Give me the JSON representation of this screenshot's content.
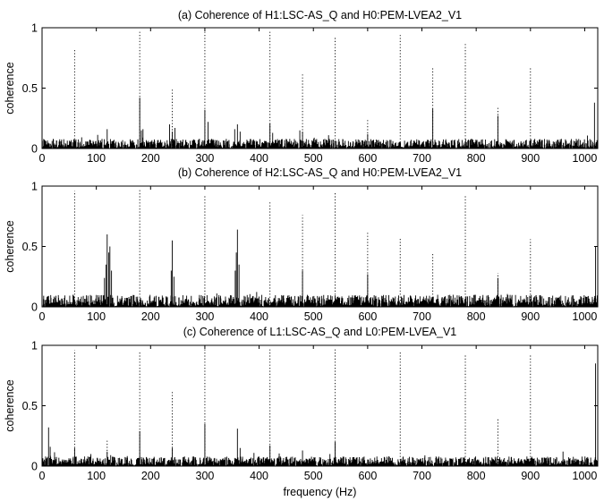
{
  "figure": {
    "xlabel": "frequency (Hz)"
  },
  "chart_data": [
    {
      "type": "line",
      "title": "(a) Coherence of H1:LSC-AS_Q and H0:PEM-LVEA2_V1",
      "xlabel": "",
      "ylabel": "coherence",
      "xlim": [
        0,
        1024
      ],
      "ylim": [
        0,
        1
      ],
      "xticks": [
        0,
        100,
        200,
        300,
        400,
        500,
        600,
        700,
        800,
        900,
        1000
      ],
      "yticks": [
        0,
        0.5,
        1
      ],
      "grid": false,
      "series": [
        {
          "style": "solid",
          "noise_floor": 0.04,
          "peaks": [
            [
              120,
              0.16
            ],
            [
              180,
              0.42
            ],
            [
              183,
              0.15
            ],
            [
              186,
              0.16
            ],
            [
              235,
              0.2
            ],
            [
              240,
              0.14
            ],
            [
              245,
              0.17
            ],
            [
              300,
              0.32
            ],
            [
              306,
              0.22
            ],
            [
              355,
              0.16
            ],
            [
              360,
              0.2
            ],
            [
              365,
              0.14
            ],
            [
              420,
              0.21
            ],
            [
              425,
              0.13
            ],
            [
              475,
              0.15
            ],
            [
              480,
              0.14
            ],
            [
              528,
              0.11
            ],
            [
              600,
              0.12
            ],
            [
              720,
              0.33
            ],
            [
              840,
              0.27
            ],
            [
              1018,
              0.38
            ]
          ]
        },
        {
          "style": "dotted",
          "points": [
            [
              60,
              0.82
            ],
            [
              180,
              0.97
            ],
            [
              240,
              0.5
            ],
            [
              300,
              0.97
            ],
            [
              420,
              0.98
            ],
            [
              480,
              0.62
            ],
            [
              540,
              0.92
            ],
            [
              600,
              0.24
            ],
            [
              660,
              0.94
            ],
            [
              720,
              0.67
            ],
            [
              780,
              0.87
            ],
            [
              840,
              0.35
            ],
            [
              900,
              0.68
            ]
          ]
        }
      ]
    },
    {
      "type": "line",
      "title": "(b) Coherence of H2:LSC-AS_Q and H0:PEM-LVEA2_V1",
      "xlabel": "",
      "ylabel": "coherence",
      "xlim": [
        0,
        1024
      ],
      "ylim": [
        0,
        1
      ],
      "xticks": [
        0,
        100,
        200,
        300,
        400,
        500,
        600,
        700,
        800,
        900,
        1000
      ],
      "yticks": [
        0,
        0.5,
        1
      ],
      "grid": false,
      "series": [
        {
          "style": "solid",
          "noise_floor": 0.05,
          "peaks": [
            [
              115,
              0.24
            ],
            [
              118,
              0.35
            ],
            [
              120,
              0.6
            ],
            [
              123,
              0.45
            ],
            [
              125,
              0.5
            ],
            [
              128,
              0.3
            ],
            [
              238,
              0.3
            ],
            [
              240,
              0.55
            ],
            [
              243,
              0.25
            ],
            [
              356,
              0.3
            ],
            [
              358,
              0.45
            ],
            [
              360,
              0.64
            ],
            [
              363,
              0.35
            ],
            [
              480,
              0.3
            ],
            [
              600,
              0.27
            ],
            [
              840,
              0.24
            ],
            [
              1020,
              0.5
            ]
          ]
        },
        {
          "style": "dotted",
          "points": [
            [
              60,
              0.96
            ],
            [
              180,
              0.98
            ],
            [
              300,
              0.92
            ],
            [
              420,
              0.88
            ],
            [
              480,
              0.76
            ],
            [
              540,
              0.95
            ],
            [
              600,
              0.63
            ],
            [
              660,
              0.57
            ],
            [
              720,
              0.45
            ],
            [
              780,
              0.93
            ],
            [
              840,
              0.28
            ],
            [
              900,
              0.56
            ]
          ]
        }
      ]
    },
    {
      "type": "line",
      "title": "(c) Coherence of L1:LSC-AS_Q and L0:PEM-LVEA_V1",
      "xlabel": "frequency (Hz)",
      "ylabel": "coherence",
      "xlim": [
        0,
        1024
      ],
      "ylim": [
        0,
        1
      ],
      "xticks": [
        0,
        100,
        200,
        300,
        400,
        500,
        600,
        700,
        800,
        900,
        1000
      ],
      "yticks": [
        0,
        0.5,
        1
      ],
      "grid": false,
      "series": [
        {
          "style": "solid",
          "noise_floor": 0.04,
          "peaks": [
            [
              12,
              0.32
            ],
            [
              15,
              0.16
            ],
            [
              60,
              0.15
            ],
            [
              90,
              0.1
            ],
            [
              120,
              0.12
            ],
            [
              180,
              0.29
            ],
            [
              240,
              0.15
            ],
            [
              300,
              0.35
            ],
            [
              360,
              0.31
            ],
            [
              365,
              0.15
            ],
            [
              420,
              0.17
            ],
            [
              480,
              0.13
            ],
            [
              540,
              0.2
            ],
            [
              960,
              0.12
            ],
            [
              1020,
              0.85
            ]
          ]
        },
        {
          "style": "dotted",
          "points": [
            [
              60,
              0.96
            ],
            [
              120,
              0.21
            ],
            [
              180,
              0.95
            ],
            [
              240,
              0.63
            ],
            [
              300,
              0.97
            ],
            [
              420,
              0.97
            ],
            [
              540,
              0.97
            ],
            [
              660,
              0.95
            ],
            [
              780,
              0.93
            ],
            [
              840,
              0.4
            ],
            [
              900,
              0.93
            ]
          ]
        }
      ]
    }
  ]
}
